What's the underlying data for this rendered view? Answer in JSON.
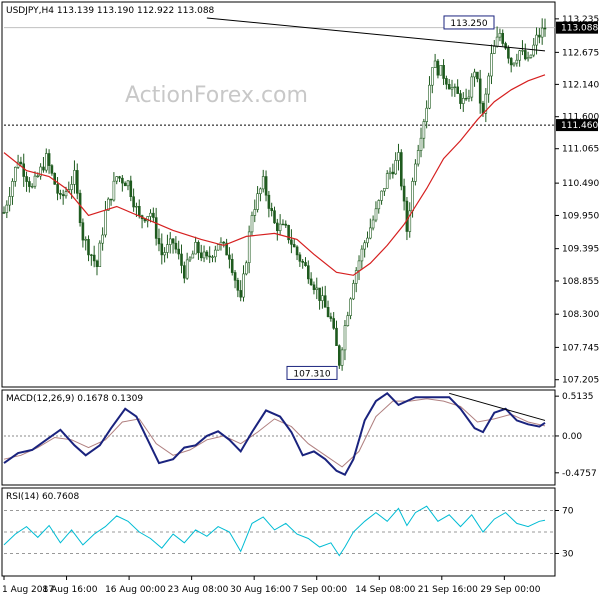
{
  "chart_data": [
    {
      "type": "candlestick",
      "title": "USDJPY,H4  113.139 113.190 112.922 113.088",
      "watermark": "ActionForex.com",
      "y_ticks": [
        "113.235",
        "112.675",
        "112.140",
        "111.600",
        "111.065",
        "110.490",
        "109.950",
        "109.395",
        "108.855",
        "108.300",
        "107.745",
        "107.205"
      ],
      "y_tick_values": [
        113.235,
        112.675,
        112.14,
        111.6,
        111.065,
        110.49,
        109.95,
        109.395,
        108.855,
        108.3,
        107.745,
        107.205
      ],
      "ylim": [
        107.1,
        113.5
      ],
      "price_label": "113.088",
      "price_value": 113.088,
      "level_label": "111.460",
      "level_value": 111.46,
      "annotations": [
        {
          "text": "113.250",
          "value": 113.25
        },
        {
          "text": "107.310",
          "value": 107.31
        }
      ],
      "x_ticks": [
        "1 Aug 2017",
        "8 Aug 16:00",
        "16 Aug 00:00",
        "23 Aug 08:00",
        "30 Aug 16:00",
        "7 Sep 00:00",
        "14 Sep 08:00",
        "21 Sep 16:00",
        "29 Sep 00:00"
      ],
      "close_path": [
        [
          0,
          110.0
        ],
        [
          5,
          110.9
        ],
        [
          10,
          110.4
        ],
        [
          15,
          110.9
        ],
        [
          20,
          110.2
        ],
        [
          25,
          110.6
        ],
        [
          28,
          109.6
        ],
        [
          33,
          109.1
        ],
        [
          36,
          110.0
        ],
        [
          40,
          110.6
        ],
        [
          44,
          110.5
        ],
        [
          48,
          109.9
        ],
        [
          52,
          110.0
        ],
        [
          56,
          109.3
        ],
        [
          60,
          109.5
        ],
        [
          64,
          109.0
        ],
        [
          68,
          109.4
        ],
        [
          72,
          109.2
        ],
        [
          76,
          109.5
        ],
        [
          80,
          109.3
        ],
        [
          84,
          108.5
        ],
        [
          88,
          110.0
        ],
        [
          92,
          110.5
        ],
        [
          96,
          109.8
        ],
        [
          100,
          109.7
        ],
        [
          104,
          109.3
        ],
        [
          108,
          109.0
        ],
        [
          112,
          108.6
        ],
        [
          116,
          108.2
        ],
        [
          119,
          107.5
        ],
        [
          121,
          108.1
        ],
        [
          124,
          108.9
        ],
        [
          128,
          109.5
        ],
        [
          132,
          110.0
        ],
        [
          136,
          110.6
        ],
        [
          140,
          110.9
        ],
        [
          143,
          109.7
        ],
        [
          146,
          110.9
        ],
        [
          150,
          111.8
        ],
        [
          152,
          112.5
        ],
        [
          156,
          112.3
        ],
        [
          160,
          112.0
        ],
        [
          164,
          111.8
        ],
        [
          167,
          112.4
        ],
        [
          170,
          111.6
        ],
        [
          173,
          112.6
        ],
        [
          176,
          113.0
        ],
        [
          178,
          112.8
        ],
        [
          180,
          112.5
        ],
        [
          183,
          112.7
        ],
        [
          186,
          112.5
        ],
        [
          189,
          112.9
        ],
        [
          192,
          113.088
        ]
      ],
      "sma_path": [
        [
          0,
          111.0
        ],
        [
          8,
          110.7
        ],
        [
          16,
          110.6
        ],
        [
          22,
          110.4
        ],
        [
          30,
          109.95
        ],
        [
          40,
          110.1
        ],
        [
          50,
          109.9
        ],
        [
          60,
          109.7
        ],
        [
          70,
          109.55
        ],
        [
          78,
          109.45
        ],
        [
          86,
          109.6
        ],
        [
          96,
          109.65
        ],
        [
          104,
          109.55
        ],
        [
          110,
          109.3
        ],
        [
          118,
          109.0
        ],
        [
          124,
          108.95
        ],
        [
          130,
          109.15
        ],
        [
          136,
          109.45
        ],
        [
          142,
          109.8
        ],
        [
          150,
          110.4
        ],
        [
          156,
          110.9
        ],
        [
          162,
          111.2
        ],
        [
          168,
          111.55
        ],
        [
          174,
          111.85
        ],
        [
          180,
          112.05
        ],
        [
          186,
          112.2
        ],
        [
          192,
          112.3
        ]
      ],
      "trendline": [
        [
          72,
          113.25
        ],
        [
          192,
          112.7
        ]
      ]
    },
    {
      "type": "line",
      "title": "MACD(12,26,9) 0.1678 0.1309",
      "y_ticks": [
        "0.5135",
        "0.00",
        "-0.4757"
      ],
      "y_tick_values": [
        0.5135,
        0.0,
        -0.4757
      ],
      "ylim": [
        -0.62,
        0.58
      ],
      "zero_level": 0.0,
      "series": [
        {
          "points": [
            [
              0,
              -0.35
            ],
            [
              5,
              -0.22
            ],
            [
              10,
              -0.18
            ],
            [
              15,
              -0.05
            ],
            [
              20,
              0.08
            ],
            [
              25,
              -0.12
            ],
            [
              29,
              -0.25
            ],
            [
              34,
              -0.12
            ],
            [
              38,
              0.1
            ],
            [
              43,
              0.35
            ],
            [
              47,
              0.25
            ],
            [
              51,
              -0.05
            ],
            [
              55,
              -0.35
            ],
            [
              60,
              -0.3
            ],
            [
              64,
              -0.15
            ],
            [
              68,
              -0.12
            ],
            [
              72,
              0.0
            ],
            [
              76,
              0.06
            ],
            [
              80,
              -0.05
            ],
            [
              84,
              -0.2
            ],
            [
              88,
              0.05
            ],
            [
              93,
              0.33
            ],
            [
              98,
              0.25
            ],
            [
              102,
              0.05
            ],
            [
              106,
              -0.25
            ],
            [
              110,
              -0.2
            ],
            [
              114,
              -0.3
            ],
            [
              118,
              -0.45
            ],
            [
              121,
              -0.5
            ],
            [
              124,
              -0.3
            ],
            [
              128,
              0.2
            ],
            [
              132,
              0.45
            ],
            [
              136,
              0.55
            ],
            [
              140,
              0.4
            ],
            [
              146,
              0.5
            ],
            [
              152,
              0.5
            ],
            [
              158,
              0.5
            ],
            [
              162,
              0.35
            ],
            [
              167,
              0.1
            ],
            [
              170,
              0.05
            ],
            [
              174,
              0.3
            ],
            [
              178,
              0.35
            ],
            [
              182,
              0.2
            ],
            [
              186,
              0.15
            ],
            [
              190,
              0.12
            ],
            [
              192,
              0.17
            ]
          ]
        },
        {
          "points": [
            [
              0,
              -0.3
            ],
            [
              6,
              -0.25
            ],
            [
              12,
              -0.15
            ],
            [
              18,
              -0.02
            ],
            [
              24,
              -0.05
            ],
            [
              30,
              -0.15
            ],
            [
              36,
              -0.05
            ],
            [
              42,
              0.18
            ],
            [
              48,
              0.22
            ],
            [
              54,
              -0.1
            ],
            [
              60,
              -0.25
            ],
            [
              66,
              -0.18
            ],
            [
              72,
              -0.05
            ],
            [
              78,
              0.0
            ],
            [
              84,
              -0.1
            ],
            [
              90,
              0.05
            ],
            [
              96,
              0.22
            ],
            [
              102,
              0.12
            ],
            [
              108,
              -0.1
            ],
            [
              114,
              -0.25
            ],
            [
              120,
              -0.4
            ],
            [
              126,
              -0.2
            ],
            [
              132,
              0.25
            ],
            [
              138,
              0.45
            ],
            [
              144,
              0.45
            ],
            [
              150,
              0.48
            ],
            [
              156,
              0.45
            ],
            [
              162,
              0.38
            ],
            [
              168,
              0.18
            ],
            [
              174,
              0.22
            ],
            [
              180,
              0.28
            ],
            [
              186,
              0.18
            ],
            [
              192,
              0.13
            ]
          ]
        }
      ],
      "trendline": [
        [
          158,
          0.55
        ],
        [
          192,
          0.2
        ]
      ]
    },
    {
      "type": "line",
      "title": "RSI(14) 60.7608",
      "y_ticks": [
        "70",
        "30"
      ],
      "y_tick_values": [
        70,
        30
      ],
      "ylim": [
        10,
        90
      ],
      "levels": [
        70,
        50,
        30
      ],
      "series": [
        {
          "points": [
            [
              0,
              38
            ],
            [
              4,
              48
            ],
            [
              8,
              55
            ],
            [
              12,
              45
            ],
            [
              16,
              56
            ],
            [
              20,
              40
            ],
            [
              24,
              52
            ],
            [
              28,
              38
            ],
            [
              32,
              48
            ],
            [
              36,
              55
            ],
            [
              40,
              65
            ],
            [
              44,
              60
            ],
            [
              48,
              50
            ],
            [
              52,
              44
            ],
            [
              56,
              35
            ],
            [
              60,
              48
            ],
            [
              64,
              40
            ],
            [
              68,
              52
            ],
            [
              72,
              46
            ],
            [
              76,
              55
            ],
            [
              80,
              50
            ],
            [
              84,
              32
            ],
            [
              88,
              58
            ],
            [
              92,
              64
            ],
            [
              96,
              52
            ],
            [
              100,
              58
            ],
            [
              104,
              48
            ],
            [
              108,
              44
            ],
            [
              112,
              36
            ],
            [
              116,
              40
            ],
            [
              119,
              28
            ],
            [
              121,
              36
            ],
            [
              124,
              50
            ],
            [
              128,
              60
            ],
            [
              132,
              68
            ],
            [
              136,
              60
            ],
            [
              140,
              72
            ],
            [
              143,
              56
            ],
            [
              146,
              68
            ],
            [
              150,
              74
            ],
            [
              154,
              60
            ],
            [
              158,
              66
            ],
            [
              162,
              55
            ],
            [
              166,
              66
            ],
            [
              170,
              50
            ],
            [
              174,
              62
            ],
            [
              178,
              68
            ],
            [
              182,
              58
            ],
            [
              186,
              55
            ],
            [
              190,
              60
            ],
            [
              192,
              61
            ]
          ]
        }
      ]
    }
  ]
}
